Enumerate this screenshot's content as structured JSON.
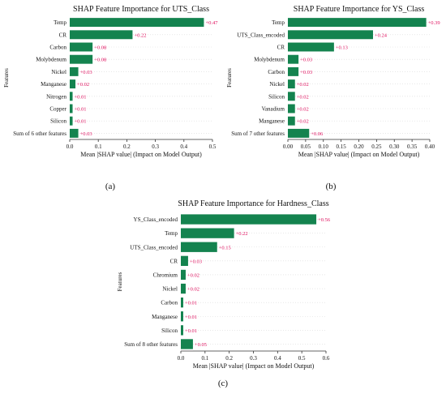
{
  "captions": [
    "(a)",
    "(b)",
    "(c)"
  ],
  "chart_data": [
    {
      "type": "bar",
      "orientation": "horizontal",
      "title": "SHAP Feature Importance for UTS_Class",
      "xlabel": "Mean |SHAP value| (Impact on Model Output)",
      "ylabel": "Features",
      "categories": [
        "Temp",
        "CR",
        "Carbon",
        "Molybdenum",
        "Nickel",
        "Manganese",
        "Nitrogen",
        "Copper",
        "Silicon",
        "Sum of 6 other features"
      ],
      "values": [
        0.47,
        0.22,
        0.08,
        0.08,
        0.03,
        0.02,
        0.01,
        0.01,
        0.01,
        0.03
      ],
      "value_labels": [
        "+0.47",
        "+0.22",
        "+0.08",
        "+0.08",
        "+0.03",
        "+0.02",
        "+0.01",
        "+0.01",
        "+0.01",
        "+0.03"
      ],
      "xlim": [
        0,
        0.5
      ],
      "xticks": [
        "0.0",
        "0.1",
        "0.2",
        "0.3",
        "0.4",
        "0.5"
      ],
      "grid": false,
      "bar_color": "#14834f",
      "label_color": "#e0115f"
    },
    {
      "type": "bar",
      "orientation": "horizontal",
      "title": "SHAP Feature Importance for YS_Class",
      "xlabel": "Mean |SHAP value| (Impact on Model Output)",
      "ylabel": "Features",
      "categories": [
        "Temp",
        "UTS_Class_encoded",
        "CR",
        "Molybdenum",
        "Carbon",
        "Nickel",
        "Silicon",
        "Vanadium",
        "Manganese",
        "Sum of 7 other features"
      ],
      "values": [
        0.39,
        0.24,
        0.13,
        0.03,
        0.03,
        0.02,
        0.02,
        0.02,
        0.02,
        0.06
      ],
      "value_labels": [
        "+0.39",
        "+0.24",
        "+0.13",
        "+0.03",
        "+0.03",
        "+0.02",
        "+0.02",
        "+0.02",
        "+0.02",
        "+0.06"
      ],
      "xlim": [
        0,
        0.4
      ],
      "xticks": [
        "0.00",
        "0.05",
        "0.10",
        "0.15",
        "0.20",
        "0.25",
        "0.30",
        "0.35",
        "0.40"
      ],
      "grid": false,
      "bar_color": "#14834f",
      "label_color": "#e0115f"
    },
    {
      "type": "bar",
      "orientation": "horizontal",
      "title": "SHAP Feature Importance for Hardness_Class",
      "xlabel": "Mean |SHAP value| (Impact on Model Output)",
      "ylabel": "Features",
      "categories": [
        "YS_Class_encoded",
        "Temp",
        "UTS_Class_encoded",
        "CR",
        "Chromium",
        "Nickel",
        "Carbon",
        "Manganese",
        "Silicon",
        "Sum of 8 other features"
      ],
      "values": [
        0.56,
        0.22,
        0.15,
        0.03,
        0.02,
        0.02,
        0.01,
        0.01,
        0.01,
        0.05
      ],
      "value_labels": [
        "+0.56",
        "+0.22",
        "+0.15",
        "+0.03",
        "+0.02",
        "+0.02",
        "+0.01",
        "+0.01",
        "+0.01",
        "+0.05"
      ],
      "xlim": [
        0,
        0.6
      ],
      "xticks": [
        "0.0",
        "0.1",
        "0.2",
        "0.3",
        "0.4",
        "0.5",
        "0.6"
      ],
      "grid": false,
      "bar_color": "#14834f",
      "label_color": "#e0115f"
    }
  ]
}
